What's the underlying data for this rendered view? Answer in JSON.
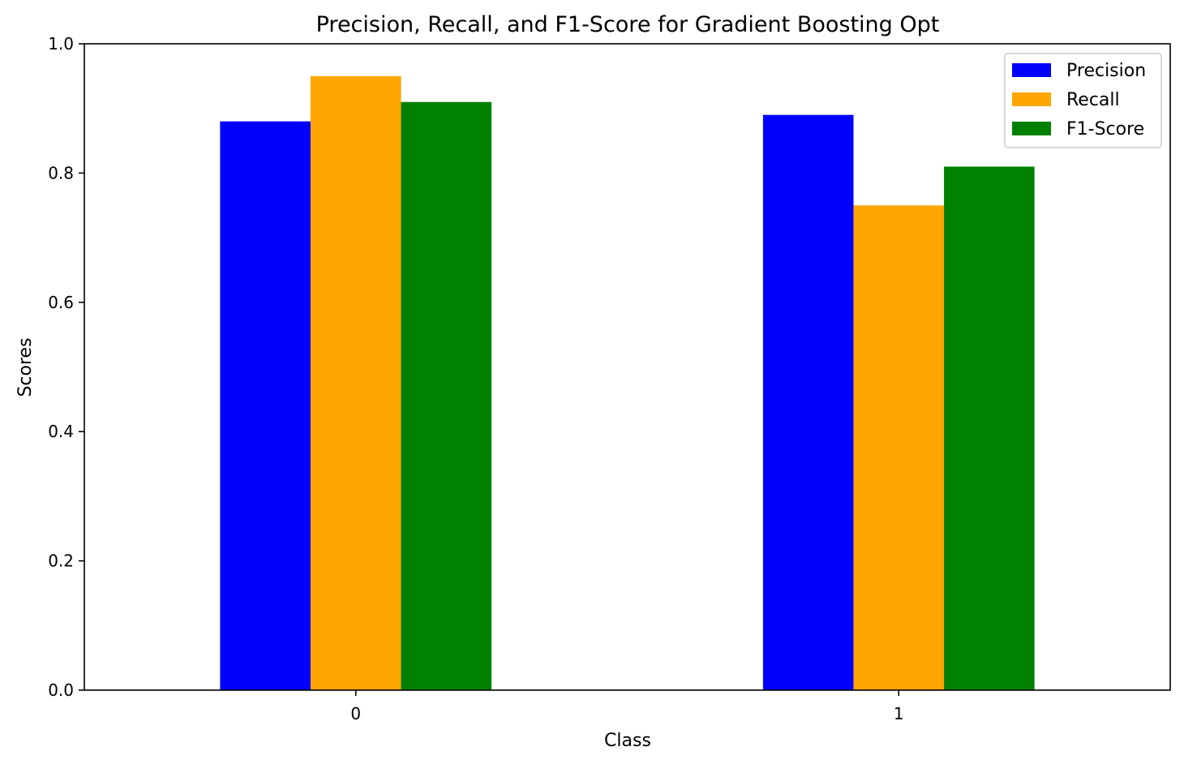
{
  "chart_data": {
    "type": "bar",
    "title": "Precision, Recall, and F1-Score for Gradient Boosting Opt",
    "xlabel": "Class",
    "ylabel": "Scores",
    "categories": [
      "0",
      "1"
    ],
    "ylim": [
      0,
      1.0
    ],
    "yticks": [
      "0.0",
      "0.2",
      "0.4",
      "0.6",
      "0.8",
      "1.0"
    ],
    "yticks_values": [
      0.0,
      0.2,
      0.4,
      0.6,
      0.8,
      1.0
    ],
    "grid": false,
    "legend_position": "top-right",
    "series": [
      {
        "name": "Precision",
        "color": "#0000ff",
        "values": [
          0.88,
          0.89
        ]
      },
      {
        "name": "Recall",
        "color": "#ffa500",
        "values": [
          0.95,
          0.75
        ]
      },
      {
        "name": "F1-Score",
        "color": "#008000",
        "values": [
          0.91,
          0.81
        ]
      }
    ]
  }
}
